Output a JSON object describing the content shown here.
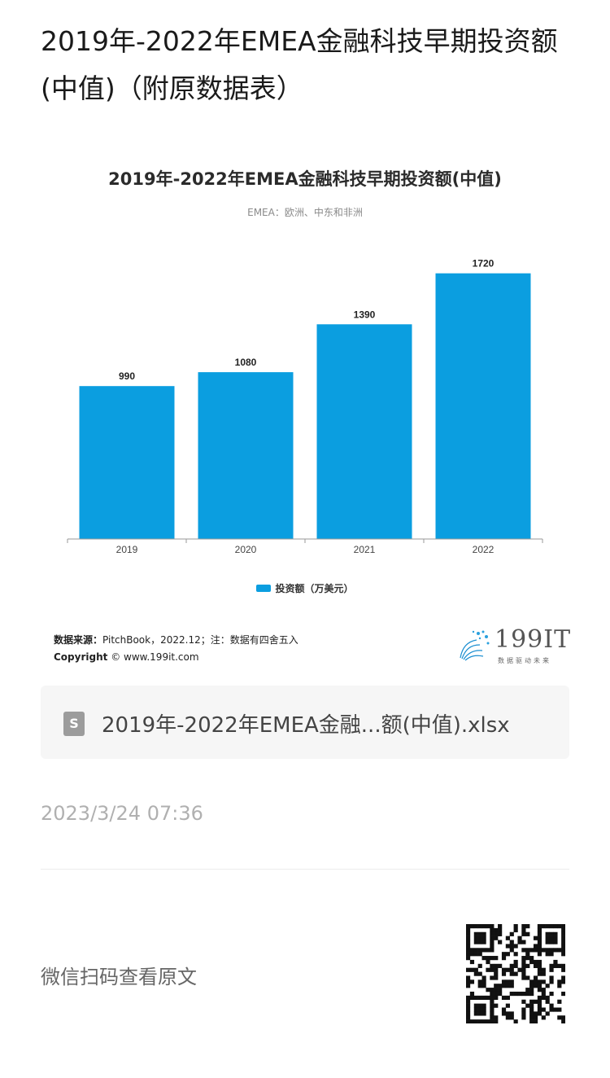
{
  "article": {
    "title": "2019年-2022年EMEA金融科技早期投资额(中值)（附原数据表）"
  },
  "chart_data": {
    "type": "bar",
    "title": "2019年-2022年EMEA金融科技早期投资额(中值)",
    "subtitle": "EMEA：欧洲、中东和非洲",
    "categories": [
      "2019",
      "2020",
      "2021",
      "2022"
    ],
    "series": [
      {
        "name": "投资额（万美元）",
        "values": [
          990,
          1080,
          1390,
          1720
        ],
        "color": "#0b9ee0"
      }
    ],
    "ylim": [
      0,
      1750
    ],
    "grid": false,
    "legend_position": "bottom"
  },
  "source": {
    "label": "数据来源：",
    "text": "PitchBook，2022.12；注：数据有四舍五入",
    "copyright_label": "Copyright",
    "copyright_text": "© www.199it.com"
  },
  "logo": {
    "text": "199IT",
    "tagline": "数据驱动未来"
  },
  "attachment": {
    "icon": "spreadsheet-file-icon",
    "icon_letter": "S",
    "filename": "2019年-2022年EMEA金融...额(中值).xlsx"
  },
  "meta": {
    "timestamp": "2023/3/24 07:36",
    "scan_text": "微信扫码查看原文"
  }
}
